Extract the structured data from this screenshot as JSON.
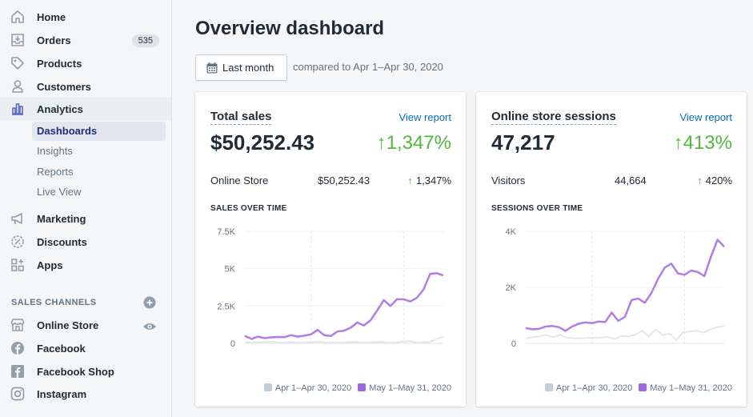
{
  "sidebar": {
    "nav": [
      {
        "label": "Home",
        "icon": "home-icon"
      },
      {
        "label": "Orders",
        "icon": "orders-icon",
        "badge": "535"
      },
      {
        "label": "Products",
        "icon": "tag-icon"
      },
      {
        "label": "Customers",
        "icon": "person-icon"
      },
      {
        "label": "Analytics",
        "icon": "bar-chart-icon"
      }
    ],
    "analytics_sub": [
      {
        "label": "Dashboards"
      },
      {
        "label": "Insights"
      },
      {
        "label": "Reports"
      },
      {
        "label": "Live View"
      }
    ],
    "nav2": [
      {
        "label": "Marketing",
        "icon": "megaphone-icon"
      },
      {
        "label": "Discounts",
        "icon": "discount-icon"
      },
      {
        "label": "Apps",
        "icon": "apps-icon"
      }
    ],
    "sales_channels_title": "SALES CHANNELS",
    "channels": [
      {
        "label": "Online Store",
        "icon": "store-icon"
      },
      {
        "label": "Facebook",
        "icon": "facebook-icon"
      },
      {
        "label": "Facebook Shop",
        "icon": "facebook-shop-icon"
      },
      {
        "label": "Instagram",
        "icon": "instagram-icon"
      }
    ]
  },
  "main": {
    "title": "Overview dashboard",
    "date_button": "Last month",
    "compare_text": "compared to Apr 1–Apr 30, 2020"
  },
  "cards": [
    {
      "title": "Total sales",
      "view_report": "View report",
      "value": "$50,252.43",
      "change": "↑1,347%",
      "row_label": "Online Store",
      "row_value": "$50,252.43",
      "row_change": "1,347%",
      "chart_title": "SALES OVER TIME"
    },
    {
      "title": "Online store sessions",
      "view_report": "View report",
      "value": "47,217",
      "change": "↑413%",
      "row_label": "Visitors",
      "row_value": "44,664",
      "row_change": "420%",
      "chart_title": "SESSIONS OVER TIME"
    }
  ],
  "colors": {
    "current": "#b07ce6",
    "previous": "#dfe3e8",
    "positive": "#50b83c",
    "link": "#006fbb"
  },
  "chart_data": [
    {
      "type": "line",
      "y_ticks": [
        "0",
        "2.5K",
        "5K",
        "7.5K"
      ],
      "x_ticks": [
        "May 11",
        "May 25"
      ],
      "ylim": [
        0,
        7500
      ],
      "legend": [
        "Apr 1–Apr 30, 2020",
        "May 1–May 31, 2020"
      ],
      "series": [
        {
          "name": "Apr 1–Apr 30, 2020",
          "values": [
            100,
            60,
            80,
            90,
            120,
            60,
            50,
            80,
            40,
            70,
            90,
            100,
            50,
            60,
            70,
            80,
            100,
            60,
            70,
            90,
            100,
            60,
            50,
            120,
            150,
            60,
            80,
            90,
            300,
            450
          ]
        },
        {
          "name": "May 1–May 31, 2020",
          "values": [
            500,
            300,
            450,
            350,
            400,
            430,
            420,
            550,
            450,
            520,
            600,
            900,
            550,
            500,
            800,
            850,
            1050,
            1400,
            1200,
            1550,
            2200,
            2900,
            2500,
            2950,
            2950,
            2800,
            3050,
            3600,
            4650,
            4700,
            4550
          ]
        }
      ]
    },
    {
      "type": "line",
      "y_ticks": [
        "0",
        "2K",
        "4K"
      ],
      "x_ticks": [
        "May 11",
        "May 25"
      ],
      "ylim": [
        0,
        4000
      ],
      "legend": [
        "Apr 1–Apr 30, 2020",
        "May 1–May 31, 2020"
      ],
      "series": [
        {
          "name": "Apr 1–Apr 30, 2020",
          "values": [
            180,
            220,
            250,
            300,
            220,
            310,
            200,
            180,
            180,
            190,
            200,
            210,
            230,
            150,
            260,
            250,
            300,
            450,
            250,
            500,
            300,
            350,
            120,
            400,
            420,
            450,
            380,
            500,
            580,
            620
          ]
        },
        {
          "name": "May 1–May 31, 2020",
          "values": [
            550,
            500,
            520,
            600,
            620,
            580,
            450,
            600,
            700,
            750,
            720,
            780,
            760,
            1100,
            800,
            950,
            1550,
            1600,
            1450,
            1800,
            2300,
            2700,
            2850,
            2500,
            2450,
            2600,
            2550,
            2400,
            3100,
            3700,
            3450
          ]
        }
      ]
    }
  ]
}
